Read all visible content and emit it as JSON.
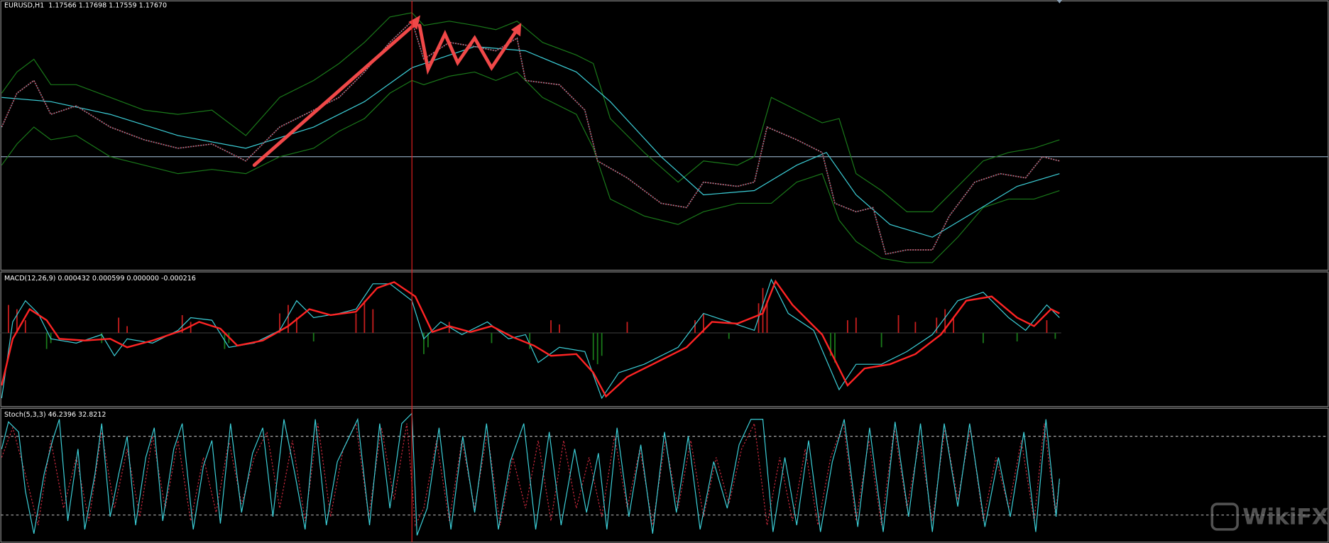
{
  "panels": [
    {
      "label": "EURUSD,H1  1.17566 1.17698 1.17559 1.17670"
    },
    {
      "label": "MACD(12,26,9) 0.000432 0.000599 0.000000 -0.000216"
    },
    {
      "label": "Stoch(5,3,3) 46.2396 32.8212"
    }
  ],
  "watermark": "WikiFX"
}
